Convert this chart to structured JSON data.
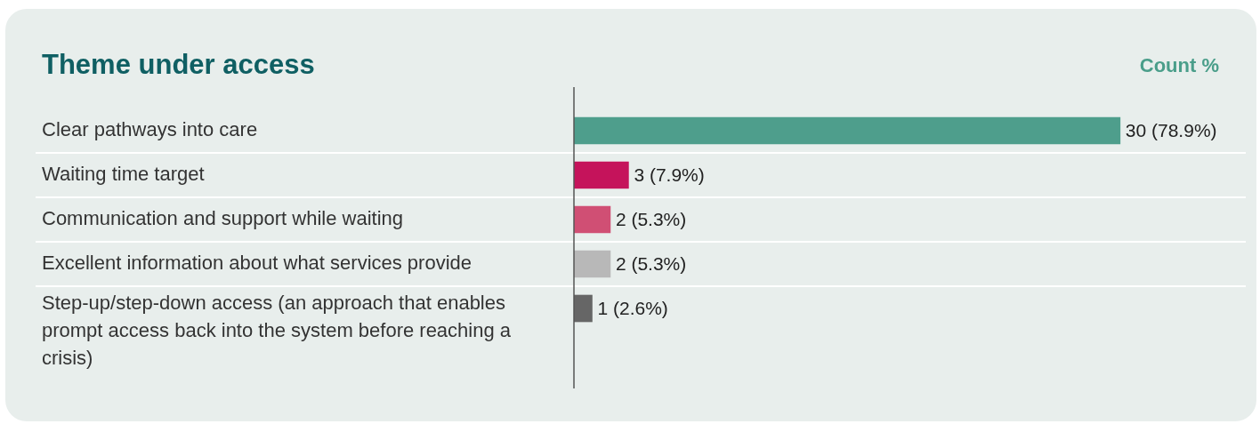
{
  "chart_data": {
    "type": "bar",
    "orientation": "horizontal",
    "title": "Theme under access",
    "xlabel": "Count %",
    "categories": [
      "Clear pathways into care",
      "Waiting time target",
      "Communication and support while waiting",
      "Excellent information about what services provide",
      "Step-up/step-down access (an approach that enables prompt access back into the system before reaching a crisis)"
    ],
    "values": [
      30,
      3,
      2,
      2,
      1
    ],
    "colors": [
      "#4e9e8c",
      "#c5135b",
      "#d04f74",
      "#b8b8b8",
      "#666666"
    ],
    "value_labels": [
      "30 (78.9%)",
      "3 (7.9%)",
      "2 (5.3%)",
      "2 (5.3%)",
      "1 (2.6%)"
    ]
  }
}
